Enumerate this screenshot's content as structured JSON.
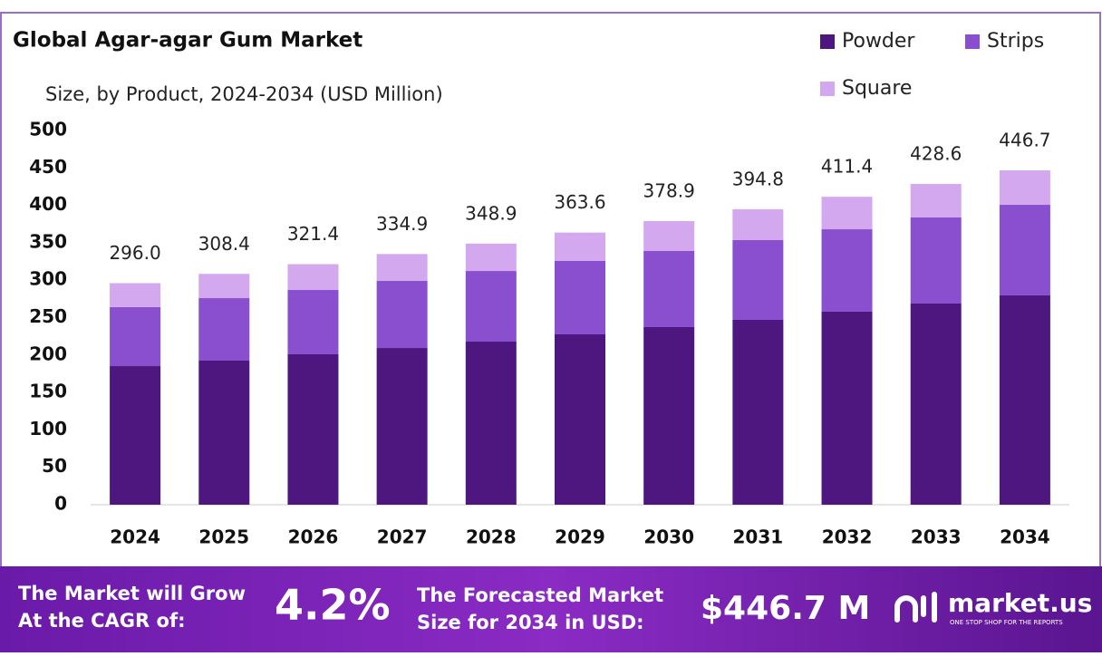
{
  "chart_data": {
    "type": "stacked-bar",
    "title": "Global Agar-agar Gum Market",
    "subtitle": "Size, by Product, 2024-2034 (USD Million)",
    "categories": [
      "2024",
      "2025",
      "2026",
      "2027",
      "2028",
      "2029",
      "2030",
      "2031",
      "2032",
      "2033",
      "2034"
    ],
    "series": [
      {
        "name": "Powder",
        "color": "#4e1780",
        "values": [
          185.2,
          192.5,
          201.0,
          209.4,
          217.9,
          227.6,
          237.3,
          247.0,
          257.9,
          268.8,
          279.7
        ]
      },
      {
        "name": "Strips",
        "color": "#8a4fcf",
        "values": [
          78.8,
          83.5,
          85.9,
          89.6,
          94.4,
          98.1,
          101.7,
          106.5,
          110.1,
          115.0,
          121.0
        ]
      },
      {
        "name": "Square",
        "color": "#d3a8ee",
        "values": [
          32.0,
          32.4,
          34.5,
          35.9,
          36.6,
          37.9,
          39.9,
          41.3,
          43.4,
          44.8,
          46.0
        ]
      }
    ],
    "totals": {
      "values": [
        296,
        308.4,
        321.4,
        334.9,
        348.9,
        363.6,
        378.9,
        394.8,
        411.4,
        428.6,
        446.7
      ],
      "value_labels": [
        "296.0",
        "308.4",
        "321.4",
        "334.9",
        "348.9",
        "363.6",
        "378.9",
        "394.8",
        "411.4",
        "428.6",
        "446.7"
      ]
    },
    "ylim": [
      0,
      500
    ],
    "yticks": [
      0,
      50,
      100,
      150,
      200,
      250,
      300,
      350,
      400,
      450,
      500
    ],
    "legend": "top-right"
  },
  "footer": {
    "cagr_text": [
      "The Market will Grow",
      "At the CAGR of:"
    ],
    "cagr": "4.2%",
    "forecast_text": [
      "The Forecasted Market",
      "Size for 2034 in USD:"
    ],
    "forecast": "$446.7 M",
    "brand": "market.us",
    "tagline": "ONE STOP SHOP FOR THE REPORTS"
  }
}
